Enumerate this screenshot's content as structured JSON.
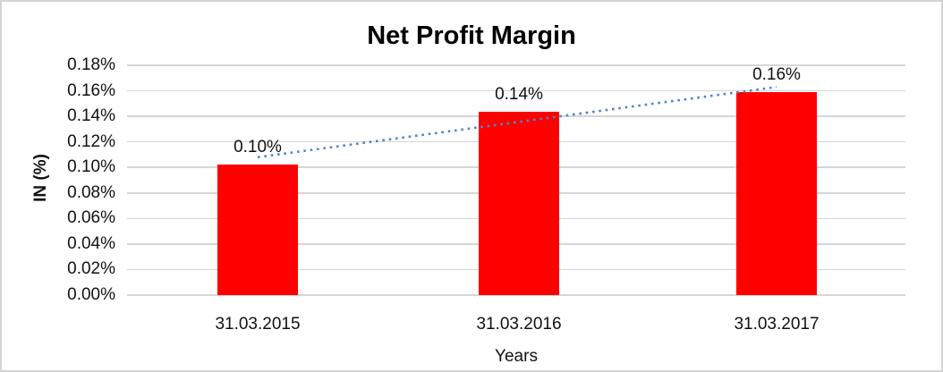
{
  "frame": {
    "background": "#ffffff",
    "border_color": "#d4d4d4"
  },
  "chart_data": {
    "type": "bar",
    "title": "Net Profit Margin",
    "xlabel": "Years",
    "ylabel": "IN (%)",
    "categories": [
      "31.03.2015",
      "31.03.2016",
      "31.03.2017"
    ],
    "values": [
      0.1,
      0.14,
      0.16
    ],
    "plotted_values": [
      0.1023,
      0.1436,
      0.159
    ],
    "data_labels": [
      "0.10%",
      "0.14%",
      "0.16%"
    ],
    "y_tick_values": [
      0.0,
      0.02,
      0.04,
      0.06,
      0.08,
      0.1,
      0.12,
      0.14,
      0.16,
      0.18
    ],
    "y_ticks": [
      "0.00%",
      "0.02%",
      "0.04%",
      "0.06%",
      "0.08%",
      "0.10%",
      "0.12%",
      "0.14%",
      "0.16%",
      "0.18%"
    ],
    "ylim": [
      0,
      0.18
    ],
    "grid": true,
    "legend": "none",
    "bar_color": "#FF0000",
    "gridline_color": "#D6D6D6",
    "text_color": "#111111",
    "trendline": {
      "type": "linear",
      "style": "dotted",
      "color": "#4E86C8",
      "start_value": 0.108,
      "end_value": 0.163,
      "from_category": "31.03.2015",
      "to_category": "31.03.2017"
    }
  }
}
